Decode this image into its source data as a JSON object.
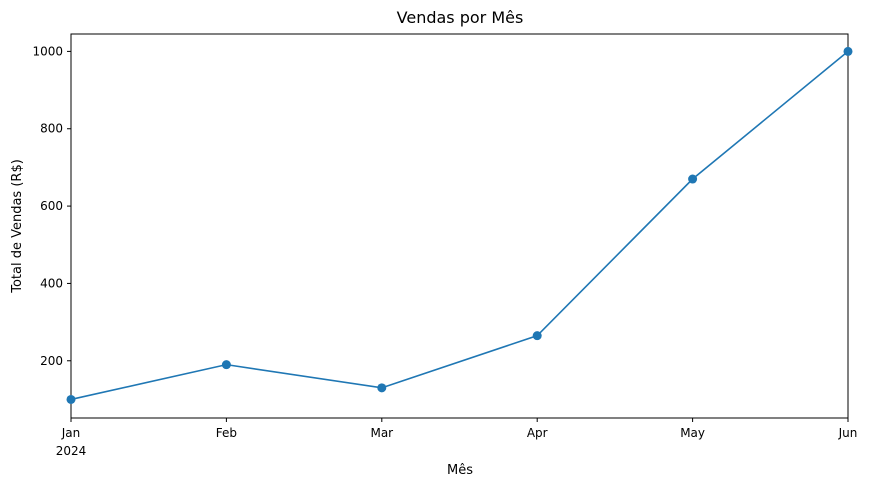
{
  "chart_data": {
    "type": "line",
    "title": "Vendas por Mês",
    "xlabel": "Mês",
    "ylabel": "Total de Vendas (R$)",
    "x": [
      "2024-01",
      "2024-02",
      "2024-03",
      "2024-04",
      "2024-05",
      "2024-06"
    ],
    "x_tick_labels": [
      "Jan",
      "Feb",
      "Mar",
      "Apr",
      "May",
      "Jun"
    ],
    "x_tick_year": "2024",
    "ylim": [
      52,
      1045
    ],
    "y_ticks": [
      200,
      400,
      600,
      800,
      1000
    ],
    "series": [
      {
        "values": [
          100,
          190,
          130,
          265,
          670,
          1000
        ],
        "color": "#1f77b4",
        "marker": "circle"
      }
    ],
    "grid": false,
    "legend": "none"
  }
}
